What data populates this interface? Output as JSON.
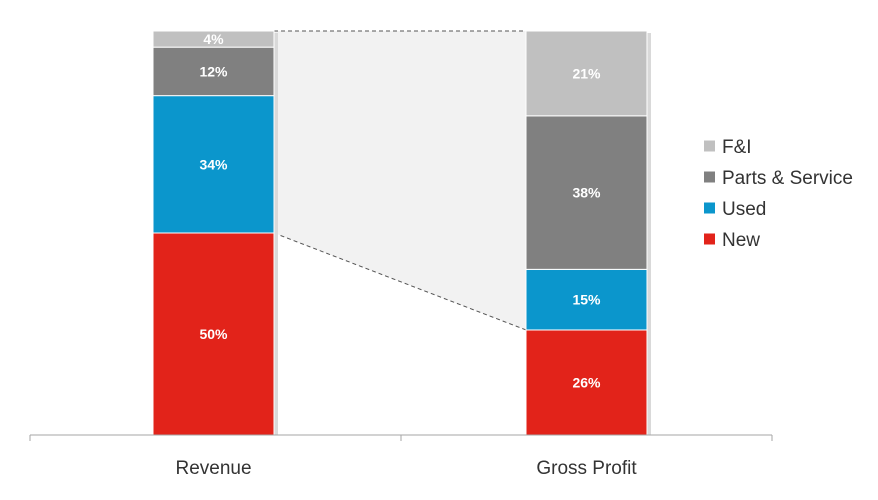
{
  "chart_data": {
    "type": "bar",
    "stacked": true,
    "normalized": true,
    "title": "",
    "xlabel": "",
    "ylabel": "",
    "ylim": [
      0,
      100
    ],
    "grid": false,
    "categories": [
      "Revenue",
      "Gross Profit"
    ],
    "series": [
      {
        "name": "New",
        "color": "#e2231a",
        "values": [
          50,
          26
        ],
        "labels": [
          "50%",
          "26%"
        ]
      },
      {
        "name": "Used",
        "color": "#0b96cc",
        "values": [
          34,
          15
        ],
        "labels": [
          "34%",
          "15%"
        ]
      },
      {
        "name": "Parts & Service",
        "color": "#808080",
        "values": [
          12,
          38
        ],
        "labels": [
          "12%",
          "38%"
        ]
      },
      {
        "name": "F&I",
        "color": "#c0c0c0",
        "values": [
          4,
          21
        ],
        "labels": [
          "4%",
          "21%"
        ]
      }
    ],
    "legend": {
      "position": "right",
      "order": [
        "F&I",
        "Parts & Service",
        "Used",
        "New"
      ]
    },
    "connectors": {
      "from_category": "Revenue",
      "to_category": "Gross Profit",
      "style": "dashed"
    }
  }
}
